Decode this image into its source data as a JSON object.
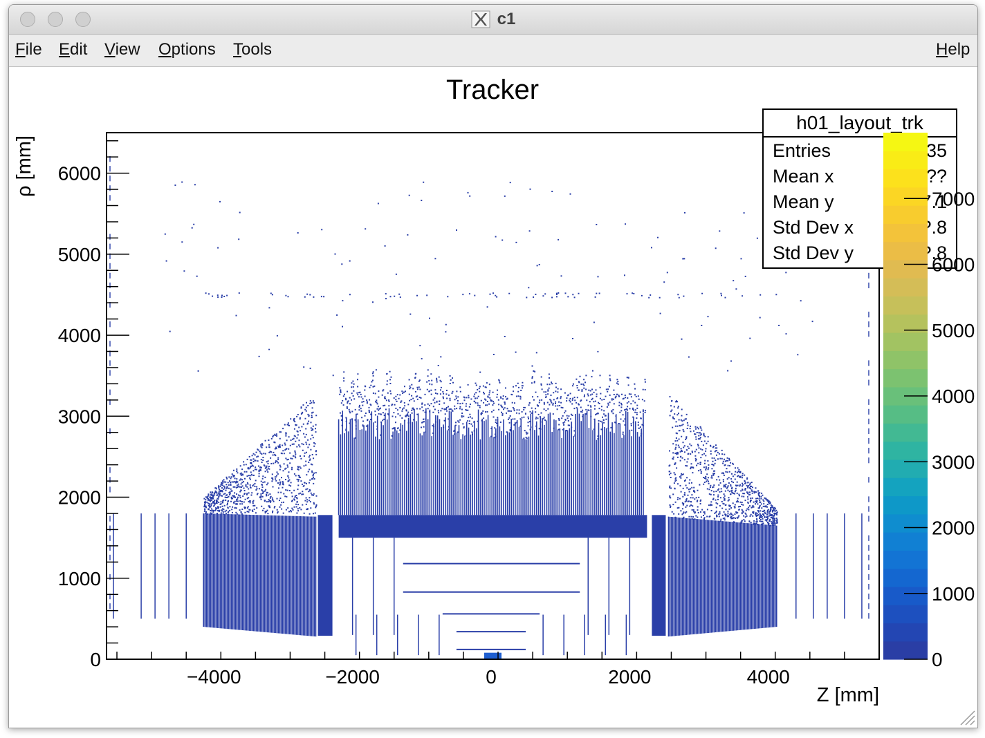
{
  "window": {
    "title": "c1"
  },
  "menu": {
    "file": "File",
    "edit": "Edit",
    "view": "View",
    "options": "Options",
    "tools": "Tools",
    "help": "Help"
  },
  "stats": {
    "name": "h01_layout_trk",
    "rows": [
      {
        "label": "Entries",
        "value": "55??35"
      },
      {
        "label": "Mean x",
        "value": "??"
      },
      {
        "label": "Mean y",
        "value": "?7.1"
      },
      {
        "label": "Std Dev x",
        "value": "?.8"
      },
      {
        "label": "Std Dev y",
        "value": "?.8"
      }
    ]
  },
  "chart_data": {
    "type": "heatmap",
    "title": "Tracker",
    "xlabel": "Z [mm]",
    "ylabel": "ρ [mm]",
    "xlim": [
      -5550,
      5600
    ],
    "ylim": [
      0,
      6500
    ],
    "x_ticks": [
      -4000,
      -2000,
      0,
      2000,
      4000
    ],
    "x_tick_labels": [
      "−4000",
      "−2000",
      "0",
      "2000",
      "4000"
    ],
    "y_ticks": [
      0,
      1000,
      2000,
      3000,
      4000,
      5000,
      6000
    ],
    "y_tick_labels": [
      "0",
      "1000",
      "2000",
      "3000",
      "4000",
      "5000",
      "6000"
    ],
    "colorbar": {
      "min": 0,
      "max": 8000,
      "ticks": [
        0,
        1000,
        2000,
        3000,
        4000,
        5000,
        6000,
        7000
      ],
      "tick_labels": [
        "0",
        "1000",
        "2000",
        "3000",
        "4000",
        "5000",
        "6000",
        "7000"
      ]
    },
    "structures": {
      "barrel_band": {
        "z": [
          -2200,
          2250
        ],
        "rho": [
          1500,
          1780
        ]
      },
      "barrel_scatter": {
        "z": [
          -2200,
          2200
        ],
        "rho": [
          1780,
          3300
        ]
      },
      "endcap_left_wedge": {
        "z": [
          -4150,
          -2530
        ],
        "rho_low": [
          400,
          280
        ],
        "rho_top": [
          1800,
          1760
        ]
      },
      "endcap_right_wedge": {
        "z": [
          2560,
          4120
        ],
        "rho_low": [
          280,
          400
        ],
        "rho_top": [
          1760,
          1650
        ]
      },
      "forward_disk_left": {
        "z": [
          -2500,
          -2290
        ],
        "rho": [
          290,
          1780
        ]
      },
      "forward_disk_right": {
        "z": [
          2320,
          2520
        ],
        "rho": [
          290,
          1780
        ]
      },
      "inner_layers": [
        {
          "z": [
            -1270,
            1280
          ],
          "rho": 1510
        },
        {
          "z": [
            -1270,
            1280
          ],
          "rho": 1180
        },
        {
          "z": [
            -1270,
            1280
          ],
          "rho": 830
        },
        {
          "z": [
            -700,
            700
          ],
          "rho": 560
        },
        {
          "z": [
            -500,
            500
          ],
          "rho": 340
        },
        {
          "z": [
            -500,
            500
          ],
          "rho": 120
        }
      ],
      "core_hotspot": {
        "z": [
          -100,
          150
        ],
        "rho": [
          0,
          80
        ]
      }
    }
  }
}
